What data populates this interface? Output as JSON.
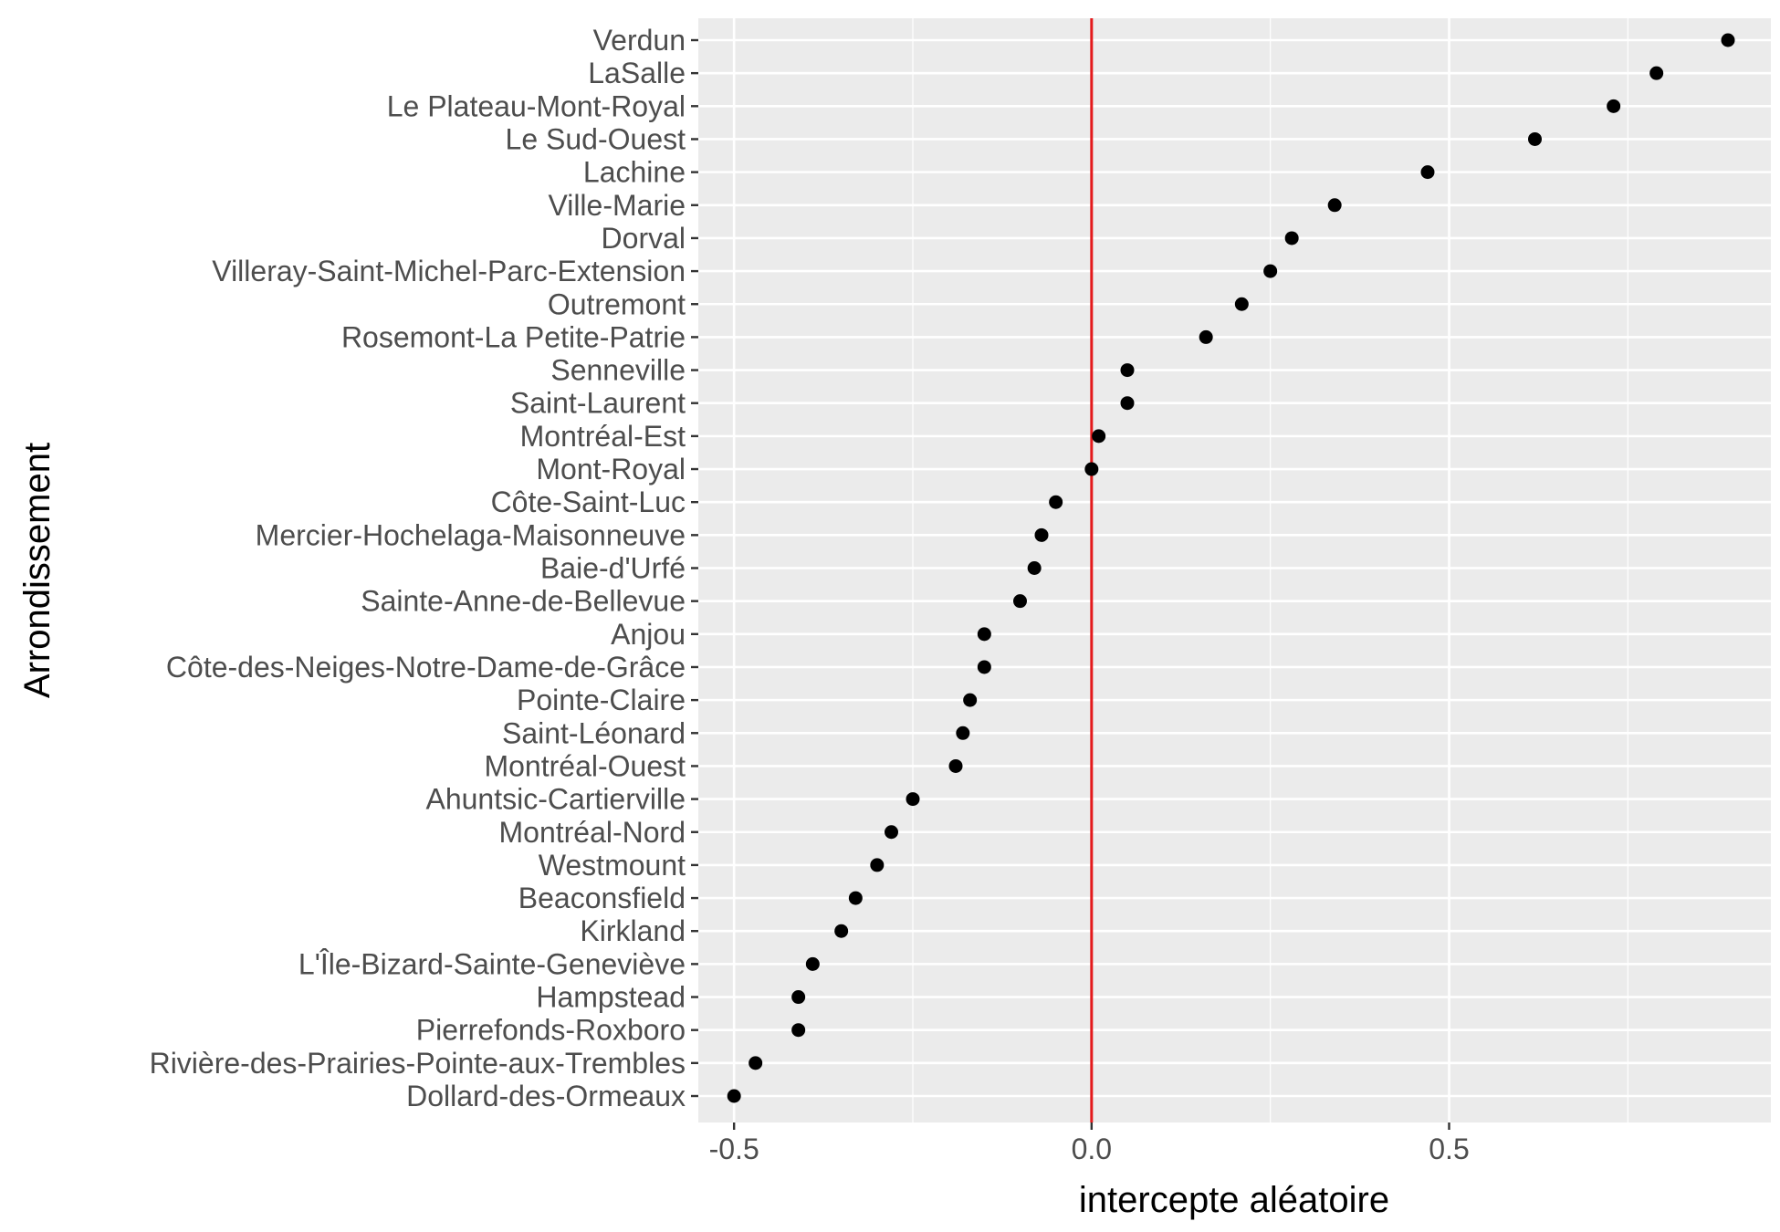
{
  "chart_data": {
    "type": "scatter",
    "xlabel": "intercepte aléatoire",
    "ylabel": "Arrondissement",
    "xlim": [
      -0.55,
      0.95
    ],
    "x_ticks": [
      -0.5,
      0.0,
      0.5
    ],
    "x_tick_labels": [
      "-0.5",
      "0.0",
      "0.5"
    ],
    "reference_line": {
      "x": 0,
      "color": "#e41a1c"
    },
    "categories": [
      "Verdun",
      "LaSalle",
      "Le Plateau-Mont-Royal",
      "Le Sud-Ouest",
      "Lachine",
      "Ville-Marie",
      "Dorval",
      "Villeray-Saint-Michel-Parc-Extension",
      "Outremont",
      "Rosemont-La Petite-Patrie",
      "Senneville",
      "Saint-Laurent",
      "Montréal-Est",
      "Mont-Royal",
      "Côte-Saint-Luc",
      "Mercier-Hochelaga-Maisonneuve",
      "Baie-d'Urfé",
      "Sainte-Anne-de-Bellevue",
      "Anjou",
      "Côte-des-Neiges-Notre-Dame-de-Grâce",
      "Pointe-Claire",
      "Saint-Léonard",
      "Montréal-Ouest",
      "Ahuntsic-Cartierville",
      "Montréal-Nord",
      "Westmount",
      "Beaconsfield",
      "Kirkland",
      "L'Île-Bizard-Sainte-Geneviève",
      "Hampstead",
      "Pierrefonds-Roxboro",
      "Rivière-des-Prairies-Pointe-aux-Trembles",
      "Dollard-des-Ormeaux"
    ],
    "values": [
      0.89,
      0.79,
      0.73,
      0.62,
      0.47,
      0.34,
      0.28,
      0.25,
      0.21,
      0.16,
      0.05,
      0.05,
      0.01,
      0.0,
      -0.05,
      -0.07,
      -0.08,
      -0.1,
      -0.15,
      -0.15,
      -0.17,
      -0.18,
      -0.19,
      -0.25,
      -0.28,
      -0.3,
      -0.33,
      -0.35,
      -0.39,
      -0.41,
      -0.41,
      -0.47,
      -0.5
    ],
    "colors": {
      "panel_background": "#ebebeb",
      "grid": "#ffffff",
      "point": "#000000",
      "reference_line": "#e41a1c"
    }
  }
}
